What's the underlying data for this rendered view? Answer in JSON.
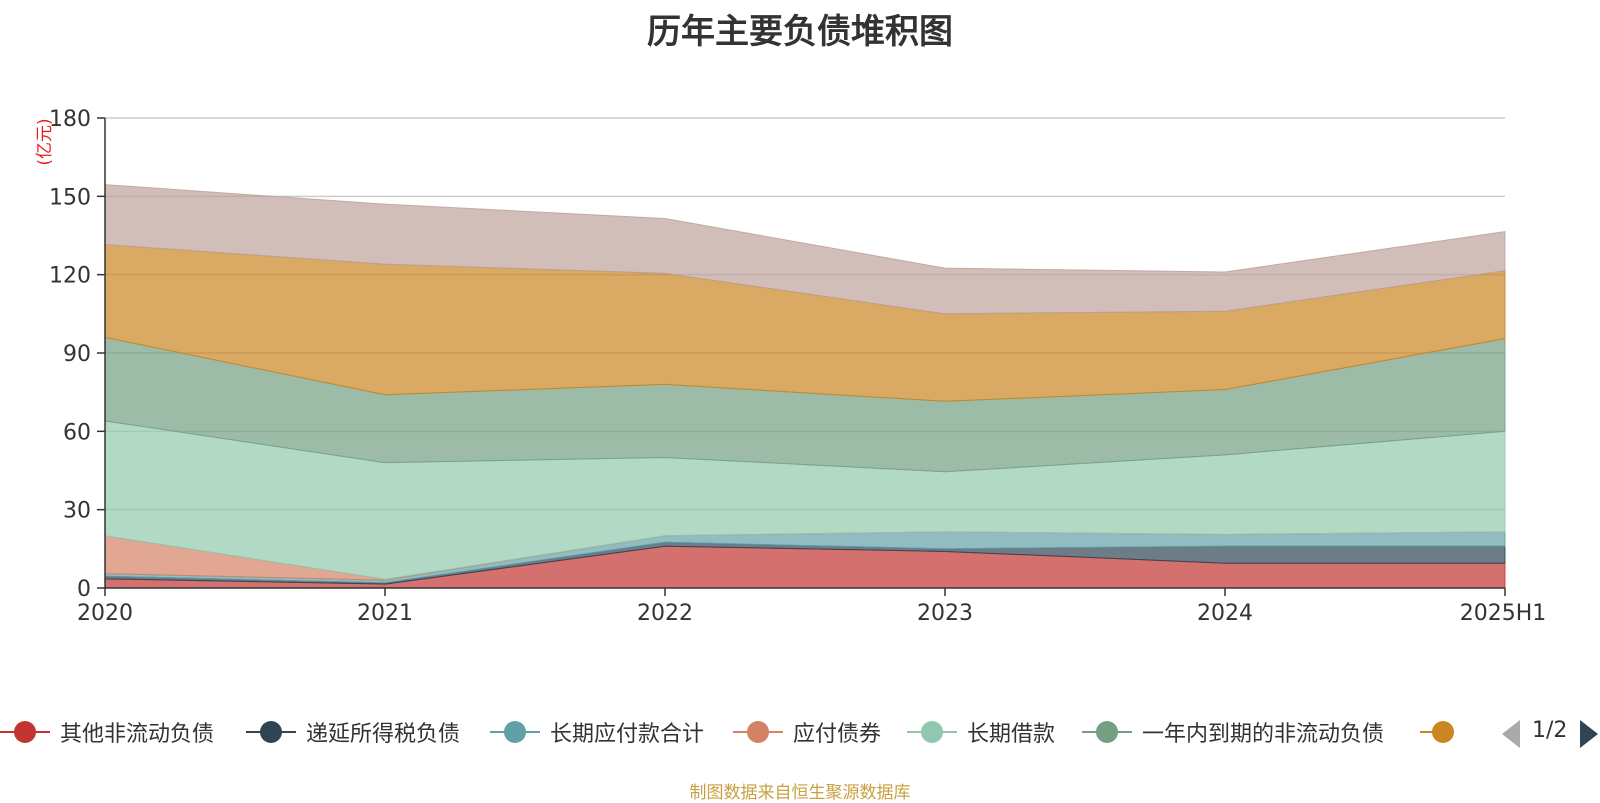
{
  "chart_data": {
    "type": "area",
    "title": "历年主要负债堆积图",
    "ylabel": "(亿元)",
    "xlabel": "",
    "categories": [
      "2020",
      "2021",
      "2022",
      "2023",
      "2024",
      "2025H1"
    ],
    "ylim": [
      0,
      180
    ],
    "yticks": [
      0,
      30,
      60,
      90,
      120,
      150,
      180
    ],
    "stacked": true,
    "grid": true,
    "legend_position": "bottom",
    "series": [
      {
        "name": "其他非流动负债",
        "color": "#c23531",
        "values": [
          3.5,
          1.5,
          16,
          14,
          9.5,
          9.5
        ]
      },
      {
        "name": "递延所得税负债",
        "color": "#2f4554",
        "values": [
          1,
          0.5,
          1.5,
          1,
          6.5,
          6.5
        ]
      },
      {
        "name": "长期应付款合计",
        "color": "#61a0a8",
        "values": [
          1,
          1,
          2.5,
          6.5,
          4.5,
          5.5
        ]
      },
      {
        "name": "应付债券",
        "color": "#d48265",
        "values": [
          14.5,
          0.3,
          0,
          0,
          0,
          0
        ]
      },
      {
        "name": "长期借款",
        "color": "#91c7ae",
        "values": [
          44,
          44.7,
          30,
          23,
          30.5,
          38.5
        ]
      },
      {
        "name": "一年内到期的非流动负债",
        "color": "#749f83",
        "values": [
          32,
          26,
          28,
          27,
          25,
          35.5
        ]
      },
      {
        "name": "",
        "color": "#ca8622",
        "values": [
          35.5,
          50,
          42.5,
          33.5,
          30,
          26
        ]
      },
      {
        "name": "",
        "color": "#bda29a",
        "values": [
          23,
          23,
          21,
          17.5,
          15,
          15
        ]
      }
    ]
  },
  "legend": {
    "page_indicator": "1/2"
  },
  "source_note": "制图数据来自恒生聚源数据库"
}
